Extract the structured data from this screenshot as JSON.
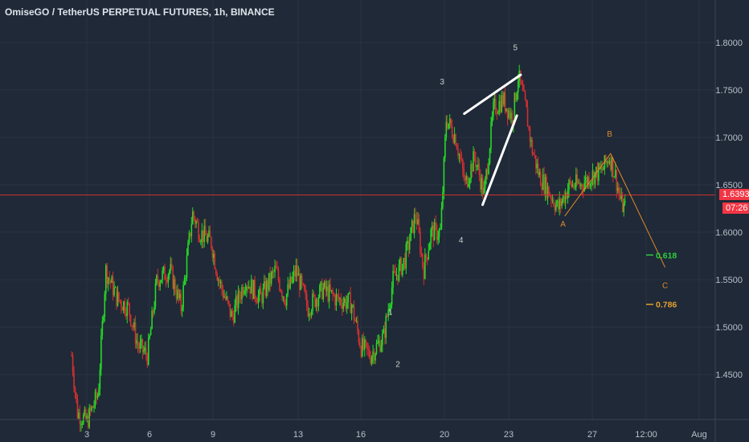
{
  "header": {
    "title": "OmiseGO / TetherUS PERPETUAL FUTURES, 1h, BINANCE"
  },
  "price_tags": {
    "last_price": "1.6393",
    "countdown": "07:26",
    "tag_color": "#f23645"
  },
  "colors": {
    "background": "#1f2937",
    "up": "#26d926",
    "down": "#d03030",
    "grid": "#2a3442",
    "axis_text": "#b8c0ca",
    "price_line": "#d32f2f",
    "wave_label": "#cfcfcf",
    "abc_label": "#e08a2a",
    "fib_618": "#2ecc40",
    "fib_786": "#e0a030"
  },
  "chart_data": {
    "type": "candlestick",
    "title": "OmiseGO / TetherUS PERPETUAL FUTURES, 1h, BINANCE",
    "x_tick_labels": [
      "3",
      "6",
      "9",
      "13",
      "16",
      "20",
      "23",
      "27",
      "12:00",
      "Aug"
    ],
    "y_tick_labels": [
      "1.8000",
      "1.7500",
      "1.7000",
      "1.6500",
      "1.6000",
      "1.5500",
      "1.5000",
      "1.4500"
    ],
    "ylim": [
      1.405,
      1.84
    ],
    "grid": true,
    "last_price": 1.6393,
    "price_path": [
      [
        2.0,
        1.47
      ],
      [
        2.3,
        1.41
      ],
      [
        2.8,
        1.4
      ],
      [
        3.4,
        1.43
      ],
      [
        3.8,
        1.56
      ],
      [
        4.4,
        1.53
      ],
      [
        5.0,
        1.52
      ],
      [
        5.5,
        1.48
      ],
      [
        6.0,
        1.47
      ],
      [
        6.5,
        1.55
      ],
      [
        7.2,
        1.56
      ],
      [
        7.8,
        1.52
      ],
      [
        8.4,
        1.62
      ],
      [
        8.8,
        1.6
      ],
      [
        9.4,
        1.59
      ],
      [
        9.8,
        1.55
      ],
      [
        10.5,
        1.51
      ],
      [
        11.2,
        1.55
      ],
      [
        12.0,
        1.53
      ],
      [
        12.8,
        1.56
      ],
      [
        13.3,
        1.53
      ],
      [
        13.9,
        1.56
      ],
      [
        14.5,
        1.52
      ],
      [
        15.3,
        1.54
      ],
      [
        16.0,
        1.53
      ],
      [
        16.8,
        1.525
      ],
      [
        17.3,
        1.48
      ],
      [
        17.8,
        1.47
      ],
      [
        18.5,
        1.49
      ],
      [
        19.0,
        1.55
      ],
      [
        19.6,
        1.57
      ],
      [
        20.2,
        1.62
      ],
      [
        20.6,
        1.56
      ],
      [
        21.0,
        1.6
      ],
      [
        21.5,
        1.6
      ],
      [
        21.8,
        1.72
      ],
      [
        22.3,
        1.7
      ],
      [
        22.8,
        1.65
      ],
      [
        23.3,
        1.68
      ],
      [
        23.8,
        1.64
      ],
      [
        24.3,
        1.73
      ],
      [
        24.8,
        1.74
      ],
      [
        25.3,
        1.72
      ],
      [
        25.6,
        1.765
      ],
      [
        26.0,
        1.73
      ],
      [
        26.3,
        1.69
      ],
      [
        26.7,
        1.66
      ],
      [
        27.3,
        1.64
      ],
      [
        27.7,
        1.625
      ],
      [
        28.3,
        1.65
      ],
      [
        28.9,
        1.65
      ],
      [
        29.5,
        1.66
      ],
      [
        30.0,
        1.665
      ],
      [
        30.4,
        1.68
      ],
      [
        30.7,
        1.66
      ],
      [
        31.0,
        1.63
      ],
      [
        31.2,
        1.625
      ]
    ],
    "wave_labels": [
      {
        "text": "1",
        "x": 18.85,
        "y": 1.513
      },
      {
        "text": "2",
        "x": 19.25,
        "y": 1.458
      },
      {
        "text": "3",
        "x": 21.58,
        "y": 1.756
      },
      {
        "text": "4",
        "x": 22.58,
        "y": 1.589
      },
      {
        "text": "5",
        "x": 25.45,
        "y": 1.792
      },
      {
        "text": "A",
        "x": 27.96,
        "y": 1.606
      },
      {
        "text": "B",
        "x": 30.4,
        "y": 1.701
      },
      {
        "text": "C",
        "x": 33.3,
        "y": 1.541
      }
    ],
    "wedge_lines": [
      {
        "x1": 22.75,
        "y1": 1.725,
        "x2": 25.73,
        "y2": 1.766
      },
      {
        "x1": 23.72,
        "y1": 1.629,
        "x2": 25.53,
        "y2": 1.723
      }
    ],
    "abc_path": [
      [
        28.05,
        1.617
      ],
      [
        30.45,
        1.683
      ],
      [
        33.3,
        1.563
      ]
    ],
    "fib_levels": [
      {
        "label": "0.618",
        "value": 1.576,
        "color_key": "fib_618"
      },
      {
        "label": "0.786",
        "value": 1.524,
        "color_key": "fib_786"
      }
    ]
  }
}
